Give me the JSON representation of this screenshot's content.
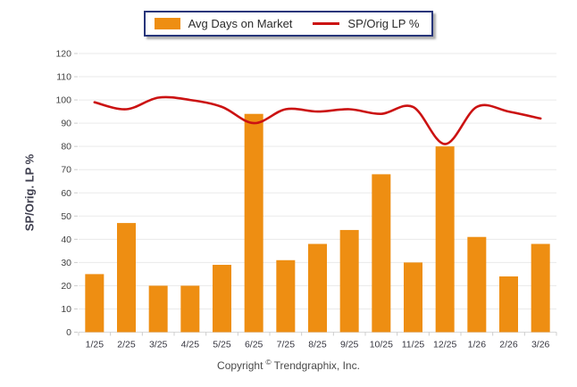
{
  "legend": {
    "series1_label": "Avg Days on Market",
    "series2_label": "SP/Orig LP %"
  },
  "y_axis_title": "SP/Orig. LP %",
  "footer": {
    "prefix": "Copyright",
    "symbol": "©",
    "company": "Trendgraphix, Inc."
  },
  "colors": {
    "bar": "#EE8E12",
    "line": "#CB1212",
    "legend_border": "#27357A",
    "grid": "#EAEAEA",
    "baseline": "#D8D8D8",
    "tick": "#CCCCCC",
    "axis_text": "#414141",
    "x_label_text": "#35353F",
    "title_text": "#3D3D4D",
    "footer_text": "#4A4A4A"
  },
  "chart_data": {
    "type": "bar",
    "title": "",
    "categories": [
      "1/25",
      "2/25",
      "3/25",
      "4/25",
      "5/25",
      "6/25",
      "7/25",
      "8/25",
      "9/25",
      "10/25",
      "11/25",
      "12/25",
      "1/26",
      "2/26",
      "3/26"
    ],
    "series": [
      {
        "name": "Avg Days on Market",
        "type": "bar",
        "color": "#EE8E12",
        "values": [
          25,
          47,
          20,
          20,
          29,
          94,
          31,
          38,
          44,
          68,
          30,
          80,
          41,
          24,
          38
        ]
      },
      {
        "name": "SP/Orig LP %",
        "type": "line",
        "color": "#CB1212",
        "values": [
          99,
          96,
          101,
          100,
          97,
          90,
          96,
          95,
          96,
          94,
          97,
          81,
          97,
          95,
          92
        ]
      }
    ],
    "xlabel": "",
    "ylabel": "SP/Orig. LP %",
    "ylim": [
      0,
      120
    ],
    "ytick_step": 10,
    "grid": true,
    "legend_position": "top-center"
  }
}
